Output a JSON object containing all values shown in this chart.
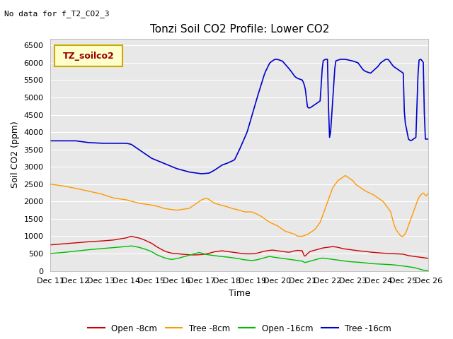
{
  "title": "Tonzi Soil CO2 Profile: Lower CO2",
  "subtitle": "No data for f_T2_CO2_3",
  "xlabel": "Time",
  "ylabel": "Soil CO2 (ppm)",
  "ylim": [
    0,
    6700
  ],
  "yticks": [
    0,
    500,
    1000,
    1500,
    2000,
    2500,
    3000,
    3500,
    4000,
    4500,
    5000,
    5500,
    6000,
    6500
  ],
  "xtick_labels": [
    "Dec 11",
    "Dec 12",
    "Dec 13",
    "Dec 14",
    "Dec 15",
    "Dec 16",
    "Dec 17",
    "Dec 18",
    "Dec 19",
    "Dec 20",
    "Dec 21",
    "Dec 22",
    "Dec 23",
    "Dec 24",
    "Dec 25",
    "Dec 26"
  ],
  "legend_label": "TZ_soilco2",
  "legend_bg": "#ffffcc",
  "legend_border": "#ccaa00",
  "series_labels": [
    "Open -8cm",
    "Tree -8cm",
    "Open -16cm",
    "Tree -16cm"
  ],
  "series_colors": [
    "#cc0000",
    "#ff9900",
    "#00bb00",
    "#0000cc"
  ],
  "plot_bg": "#e8e8e8",
  "grid_color": "#ffffff",
  "fig_bg": "#ffffff"
}
